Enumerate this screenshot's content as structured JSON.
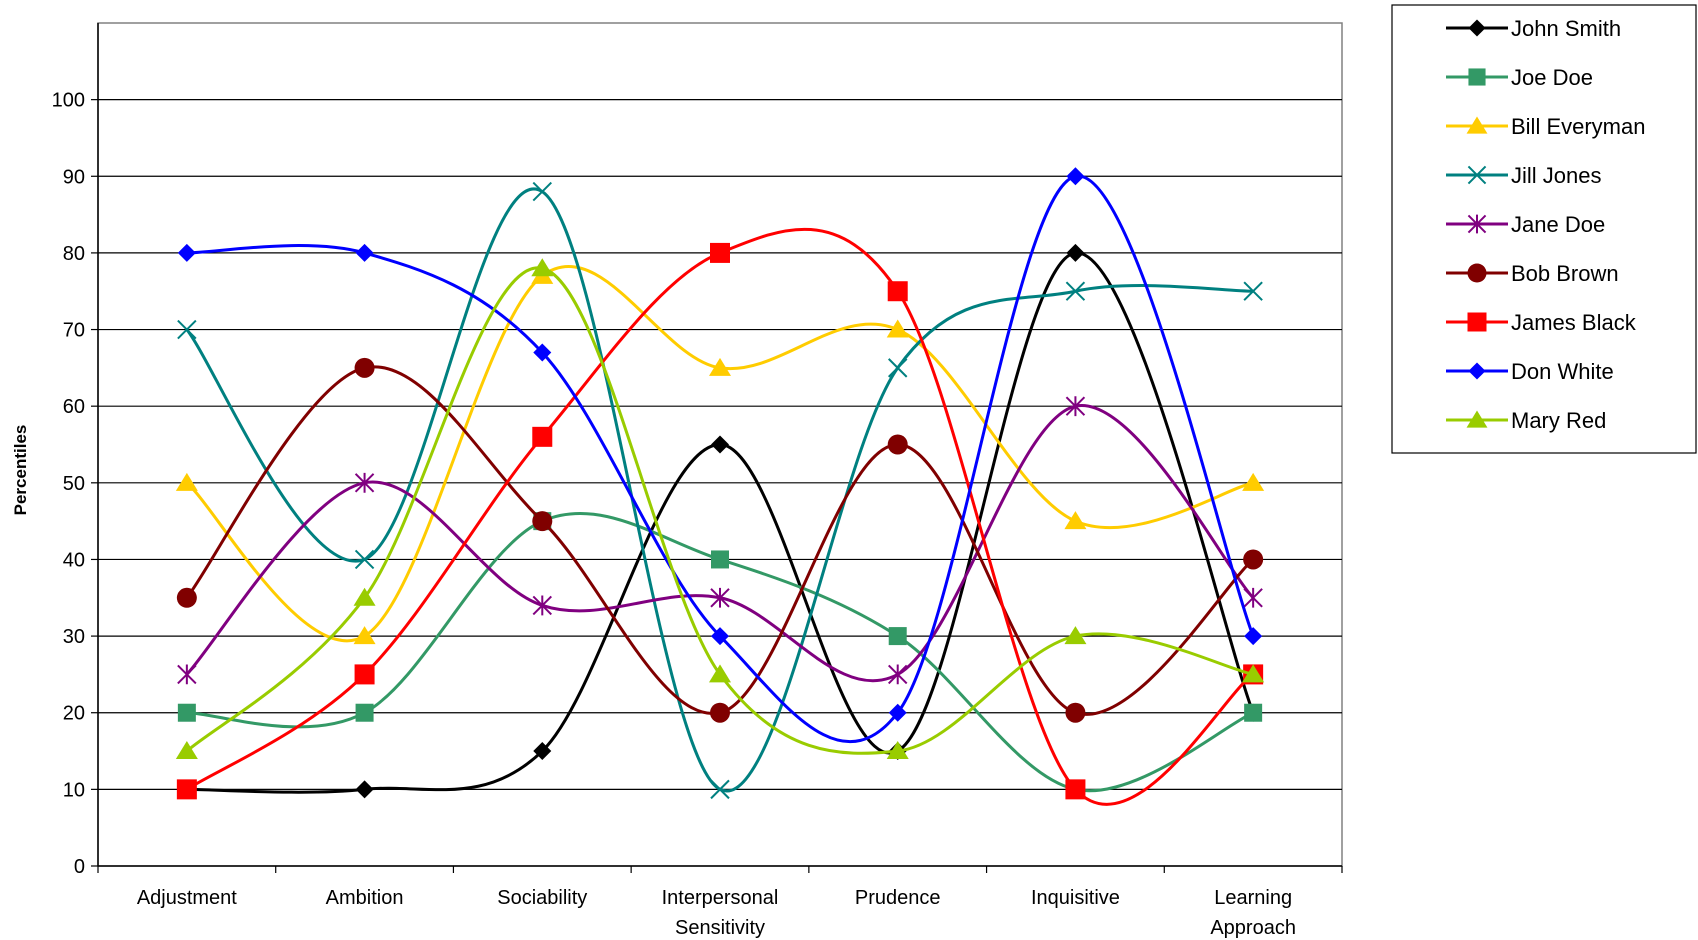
{
  "chart_data": {
    "type": "line",
    "title": "",
    "xlabel": "",
    "ylabel": "Percentiles",
    "ylim": [
      0,
      100
    ],
    "y_ticks": [
      0,
      10,
      20,
      30,
      40,
      50,
      60,
      70,
      80,
      90,
      100
    ],
    "grid": "horizontal",
    "smooth": true,
    "legend_position": "top-right",
    "categories": [
      [
        "Adjustment"
      ],
      [
        "Ambition"
      ],
      [
        "Sociability"
      ],
      [
        "Interpersonal",
        "Sensitivity"
      ],
      [
        "Prudence"
      ],
      [
        "Inquisitive"
      ],
      [
        "Learning",
        "Approach"
      ]
    ],
    "series": [
      {
        "name": "John Smith",
        "color": "#000000",
        "marker": "diamond",
        "values": [
          10,
          10,
          15,
          55,
          15,
          80,
          20
        ]
      },
      {
        "name": "Joe Doe",
        "color": "#339966",
        "marker": "square",
        "values": [
          20,
          20,
          45,
          40,
          30,
          10,
          20
        ]
      },
      {
        "name": "Bill Everyman",
        "color": "#FFCC00",
        "marker": "triangle",
        "values": [
          50,
          30,
          77,
          65,
          70,
          45,
          50
        ]
      },
      {
        "name": "Jill Jones",
        "color": "#008080",
        "marker": "x",
        "values": [
          70,
          40,
          88,
          10,
          65,
          75,
          75
        ]
      },
      {
        "name": "Jane Doe",
        "color": "#800080",
        "marker": "star",
        "values": [
          25,
          50,
          34,
          35,
          25,
          60,
          35
        ]
      },
      {
        "name": "Bob Brown",
        "color": "#800000",
        "marker": "circle",
        "values": [
          35,
          65,
          45,
          20,
          55,
          20,
          40
        ]
      },
      {
        "name": "James Black",
        "color": "#FF0000",
        "marker": "square",
        "values": [
          10,
          25,
          56,
          80,
          75,
          10,
          25
        ]
      },
      {
        "name": "Don White",
        "color": "#0000FF",
        "marker": "diamond",
        "values": [
          80,
          80,
          67,
          30,
          20,
          90,
          30
        ]
      },
      {
        "name": "Mary Red",
        "color": "#99CC00",
        "marker": "triangle",
        "values": [
          15,
          35,
          78,
          25,
          15,
          30,
          25
        ]
      }
    ]
  }
}
